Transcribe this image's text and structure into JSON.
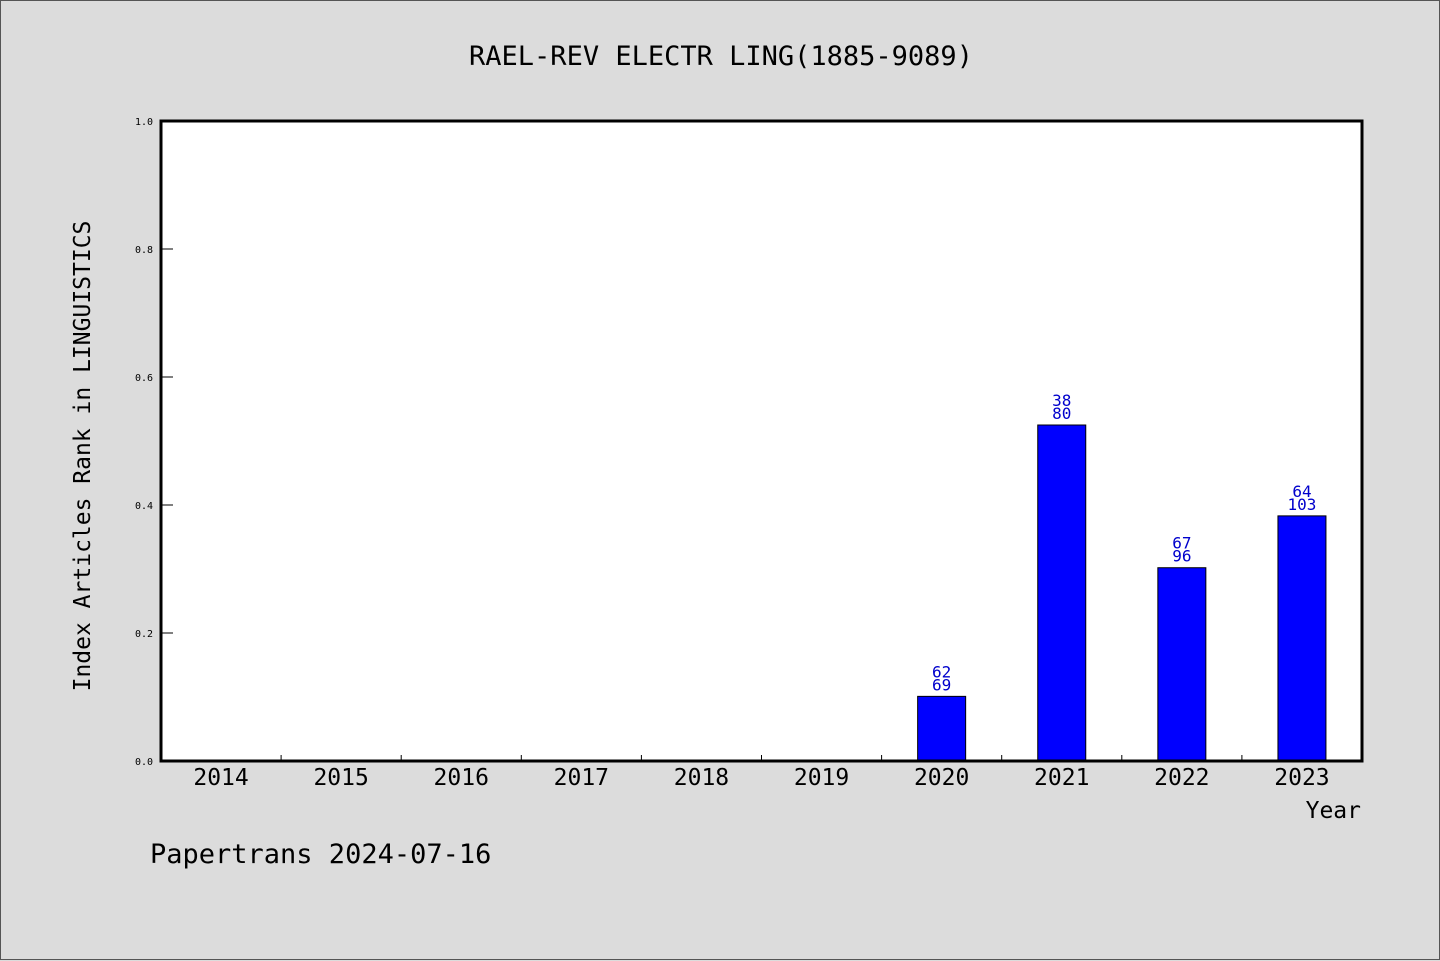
{
  "chart_data": {
    "type": "bar",
    "title": "RAEL-REV ELECTR LING(1885-9089)",
    "xlabel": "Year",
    "ylabel": "Index Articles Rank in LINGUISTICS",
    "ylim": [
      0,
      1.0
    ],
    "yticks": [
      "0.0",
      "0.2",
      "0.4",
      "0.6",
      "0.8",
      "1.0"
    ],
    "categories": [
      "2014",
      "2015",
      "2016",
      "2017",
      "2018",
      "2019",
      "2020",
      "2021",
      "2022",
      "2023"
    ],
    "values": [
      null,
      null,
      null,
      null,
      null,
      null,
      0.101,
      0.525,
      0.302,
      0.383
    ],
    "labels_top": [
      "",
      "",
      "",
      "",
      "",
      "",
      "62",
      "38",
      "67",
      "64"
    ],
    "labels_bottom": [
      "",
      "",
      "",
      "",
      "",
      "",
      "69",
      "80",
      "96",
      "103"
    ],
    "bar_color": "#0000ff",
    "label_color": "#0000cc",
    "grid": false
  },
  "footer": "Papertrans 2024-07-16"
}
